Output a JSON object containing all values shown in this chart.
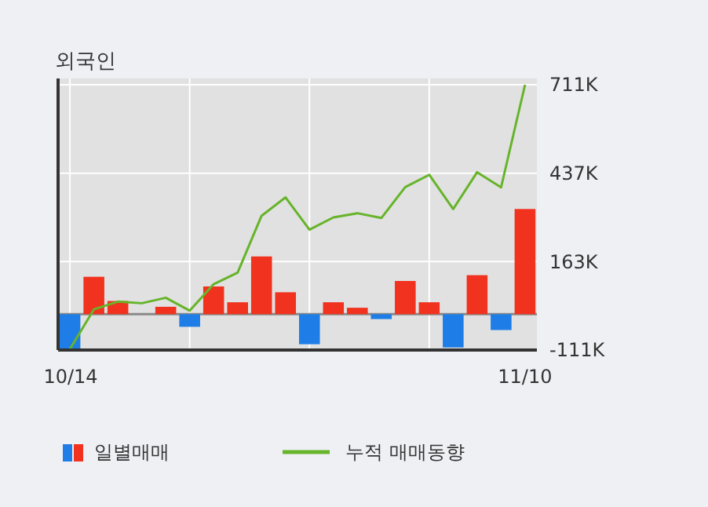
{
  "chart_data": {
    "type": "bar",
    "title": "외국인",
    "categories": [
      "10/14",
      null,
      null,
      null,
      null,
      null,
      null,
      null,
      null,
      null,
      null,
      null,
      null,
      null,
      null,
      null,
      null,
      null,
      null,
      "11/10"
    ],
    "series": [
      {
        "name": "일별매매",
        "colors": [
          "#1e7de6",
          "#f0321e",
          "#f0321e",
          "#f0321e",
          "#f0321e",
          "#1e7de6",
          "#f0321e",
          "#f0321e",
          "#f0321e",
          "#f0321e",
          "#1e7de6",
          "#f0321e",
          "#f0321e",
          "#1e7de6",
          "#f0321e",
          "#f0321e",
          "#1e7de6",
          "#f0321e",
          "#1e7de6",
          "#f0321e"
        ],
        "values": [
          -108,
          116,
          41,
          0,
          23,
          -39,
          86,
          37,
          179,
          68,
          -93,
          37,
          20,
          -15,
          103,
          37,
          -103,
          121,
          -49,
          326
        ]
      },
      {
        "name": "누적 매매동향",
        "type": "line",
        "color": "#66b42a",
        "values": [
          -108,
          15,
          39,
          34,
          51,
          11,
          93,
          129,
          305,
          362,
          262,
          300,
          313,
          298,
          394,
          432,
          326,
          440,
          393,
          711
        ]
      }
    ],
    "ylim": [
      -111,
      711
    ],
    "yticks": [
      {
        "value": -111,
        "label": "-111K"
      },
      {
        "value": 163,
        "label": "163K"
      },
      {
        "value": 437,
        "label": "437K"
      },
      {
        "value": 711,
        "label": "711K"
      }
    ],
    "grid": true,
    "legend": "bottom",
    "marker": "none"
  }
}
